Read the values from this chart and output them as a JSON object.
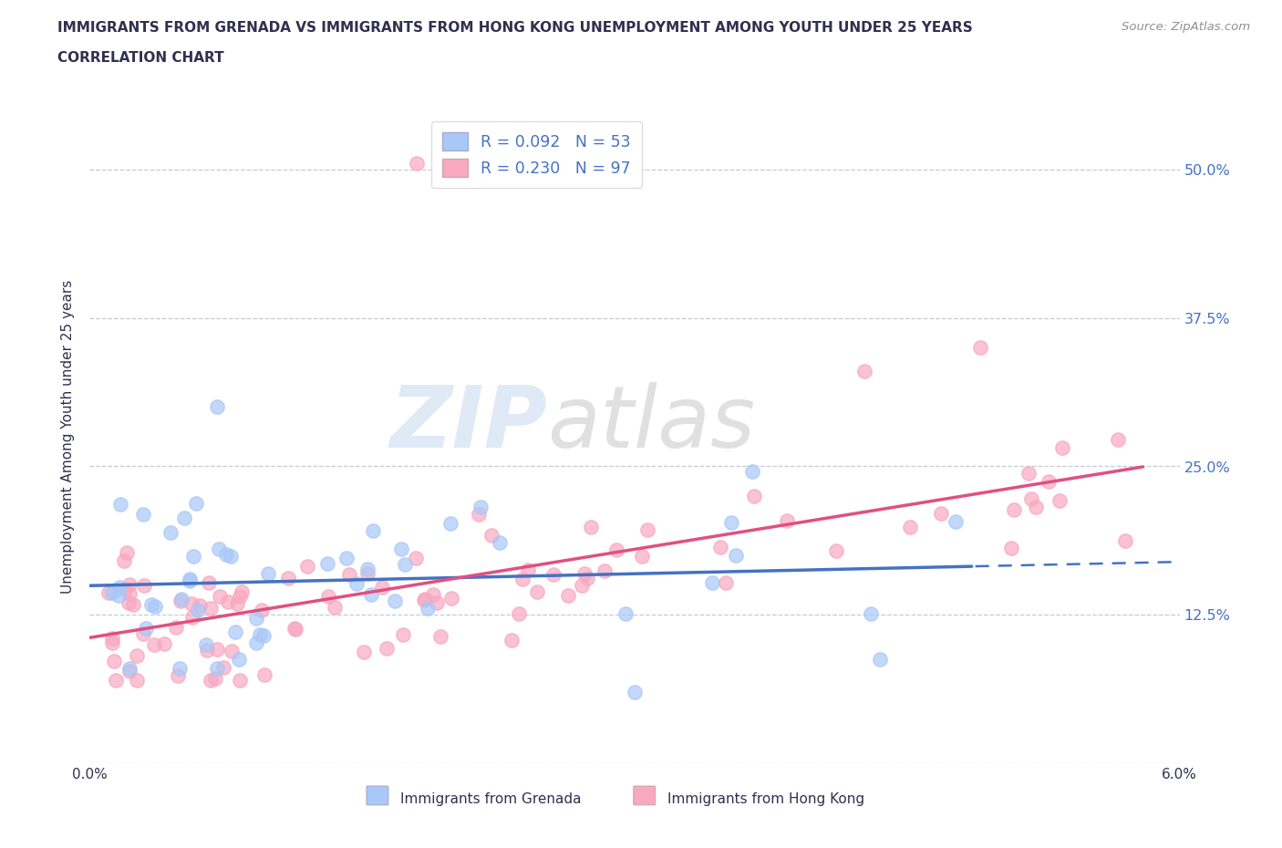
{
  "title_line1": "IMMIGRANTS FROM GRENADA VS IMMIGRANTS FROM HONG KONG UNEMPLOYMENT AMONG YOUTH UNDER 25 YEARS",
  "title_line2": "CORRELATION CHART",
  "source_text": "Source: ZipAtlas.com",
  "ylabel": "Unemployment Among Youth under 25 years",
  "xlim": [
    0.0,
    0.06
  ],
  "ylim": [
    0.0,
    0.55
  ],
  "xtick_vals": [
    0.0,
    0.01,
    0.02,
    0.03,
    0.04,
    0.05,
    0.06
  ],
  "xtick_labels": [
    "0.0%",
    "",
    "",
    "",
    "",
    "",
    "6.0%"
  ],
  "ytick_vals": [
    0.0,
    0.125,
    0.25,
    0.375,
    0.5
  ],
  "ytick_labels": [
    "",
    "12.5%",
    "25.0%",
    "37.5%",
    "50.0%"
  ],
  "grenada_color": "#a8c8f8",
  "hong_kong_color": "#f8a8c0",
  "trend_grenada_color": "#4472c4",
  "trend_hong_kong_color": "#e05080",
  "legend_label_grenada": "R = 0.092   N = 53",
  "legend_label_hong_kong": "R = 0.230   N = 97",
  "watermark1": "ZIP",
  "watermark2": "atlas",
  "bottom_label_grenada": "Immigrants from Grenada",
  "bottom_label_hong_kong": "Immigrants from Hong Kong",
  "grid_color": "#c8c8d8",
  "background_color": "#ffffff",
  "title_color": "#303050",
  "label_color": "#303050",
  "right_axis_color": "#4472c4"
}
